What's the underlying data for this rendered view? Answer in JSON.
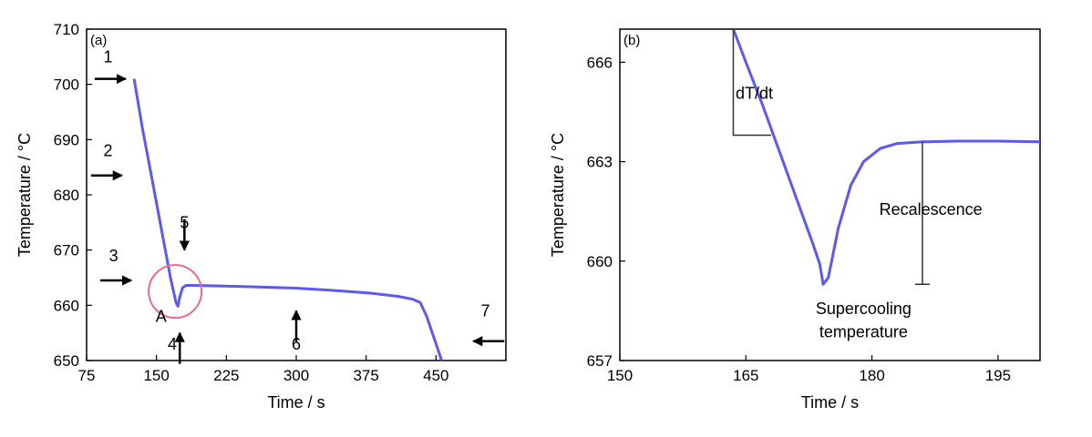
{
  "chart_data": [
    {
      "type": "line",
      "panel_label": "(a)",
      "xlabel": "Time / s",
      "ylabel": "Temperature / °C",
      "xlim": [
        75,
        525
      ],
      "ylim": [
        650,
        710
      ],
      "xticks": [
        "75",
        "150",
        "225",
        "300",
        "375",
        "450"
      ],
      "yticks": [
        "650",
        "660",
        "670",
        "680",
        "690",
        "700",
        "710"
      ],
      "series": [
        {
          "color": "#5a5af0",
          "x": [
            126,
            135,
            145,
            155,
            165,
            171,
            173,
            175,
            178,
            182,
            190,
            220,
            260,
            300,
            340,
            380,
            410,
            425,
            433,
            440,
            448,
            456
          ],
          "y": [
            701,
            692,
            683,
            674,
            665,
            660.5,
            659.8,
            661.5,
            663.2,
            663.6,
            663.6,
            663.5,
            663.3,
            663.1,
            662.7,
            662.2,
            661.6,
            661.1,
            660.5,
            658,
            654,
            650
          ]
        }
      ],
      "annotations": [
        {
          "text": "1",
          "arrow": "right",
          "arrow_x": 117,
          "arrow_y": 701,
          "text_x": 98,
          "text_y": 704
        },
        {
          "text": "2",
          "arrow": "right",
          "arrow_x": 113,
          "arrow_y": 683.5,
          "text_x": 98,
          "text_y": 687
        },
        {
          "text": "3",
          "arrow": "right",
          "arrow_x": 123,
          "arrow_y": 664.5,
          "text_x": 104,
          "text_y": 668
        },
        {
          "text": "4",
          "arrow": "up",
          "arrow_x": 175,
          "arrow_y": 655,
          "text_x": 167,
          "text_y": 652
        },
        {
          "text": "5",
          "arrow": "down",
          "arrow_x": 180,
          "arrow_y": 670,
          "text_x": 180,
          "text_y": 674
        },
        {
          "text": "6",
          "arrow": "up",
          "arrow_x": 300,
          "arrow_y": 659,
          "text_x": 300,
          "text_y": 652
        },
        {
          "text": "7",
          "arrow": "left",
          "arrow_x": 490,
          "arrow_y": 653.5,
          "text_x": 503,
          "text_y": 658
        },
        {
          "text": "A",
          "text_x": 155,
          "text_y": 657
        }
      ],
      "highlight_circle": {
        "cx": 170,
        "cy": 662.5,
        "color": "#e96b86"
      }
    },
    {
      "type": "line",
      "panel_label": "(b)",
      "xlabel": "Time / s",
      "ylabel": "Temperature / °C",
      "xlim": [
        150,
        200
      ],
      "ylim": [
        657,
        667
      ],
      "xticks": [
        "150",
        "165",
        "180",
        "195"
      ],
      "yticks": [
        "657",
        "660",
        "663",
        "666"
      ],
      "series": [
        {
          "color": "#5a5af0",
          "x": [
            163.5,
            165,
            167,
            169,
            171,
            173,
            173.8,
            174.2,
            174.8,
            176,
            177.5,
            179,
            181,
            183,
            186,
            190,
            195,
            200
          ],
          "y": [
            667,
            666.0,
            664.7,
            663.3,
            661.9,
            660.5,
            659.9,
            659.3,
            659.5,
            661.0,
            662.3,
            663.0,
            663.4,
            663.55,
            663.6,
            663.62,
            663.62,
            663.6
          ]
        }
      ],
      "annotations": [
        {
          "text": "dT/dt",
          "x": 166,
          "y": 664.9
        },
        {
          "text": "Recalescence",
          "x": 187,
          "y": 661.4
        },
        {
          "text": "Supercooling",
          "x": 179,
          "y": 658.4
        },
        {
          "text": "temperature",
          "x": 179,
          "y": 657.7
        }
      ],
      "slope_triangle": {
        "x0": 163.5,
        "y0": 667,
        "x1": 168,
        "y1": 663.8
      },
      "recalescence_bar": {
        "x": 186,
        "y_top": 663.6,
        "y_bottom": 659.3
      }
    }
  ]
}
